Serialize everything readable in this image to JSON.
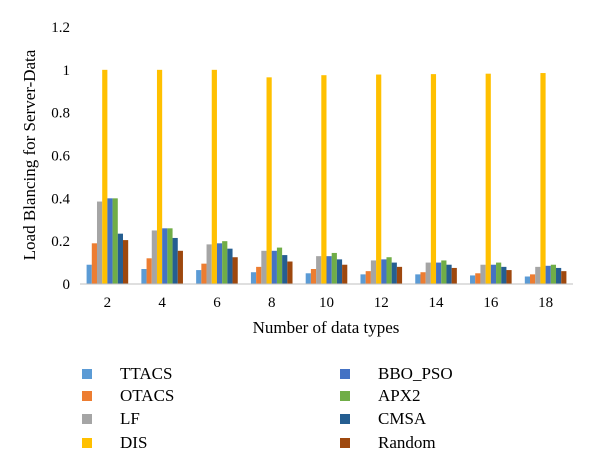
{
  "chart_data": {
    "type": "bar",
    "title": "",
    "xlabel": "Number of data types",
    "ylabel": "Load Blancing for Server-Data",
    "ylim": [
      0,
      1.2
    ],
    "yticks": [
      0,
      0.2,
      0.4,
      0.6,
      0.8,
      1,
      1.2
    ],
    "ytick_labels": [
      "0",
      "0.2",
      "0.4",
      "0.6",
      "0.8",
      "1",
      "1.2"
    ],
    "categories": [
      "2",
      "4",
      "6",
      "8",
      "10",
      "12",
      "14",
      "16",
      "18"
    ],
    "grid": false,
    "legend_position": "bottom",
    "series": [
      {
        "name": "TTACS",
        "color": "#5b9bd5",
        "values": [
          0.09,
          0.07,
          0.065,
          0.055,
          0.05,
          0.045,
          0.045,
          0.04,
          0.035
        ]
      },
      {
        "name": "OTACS",
        "color": "#ed7d31",
        "values": [
          0.19,
          0.12,
          0.095,
          0.08,
          0.07,
          0.06,
          0.055,
          0.05,
          0.045
        ]
      },
      {
        "name": "LF",
        "color": "#a5a5a5",
        "values": [
          0.385,
          0.25,
          0.185,
          0.155,
          0.13,
          0.11,
          0.1,
          0.09,
          0.08
        ]
      },
      {
        "name": "DIS",
        "color": "#ffc000",
        "values": [
          1.0,
          1.0,
          1.0,
          0.965,
          0.975,
          0.978,
          0.98,
          0.982,
          0.985
        ]
      },
      {
        "name": "BBO_PSO",
        "color": "#4472c4",
        "values": [
          0.4,
          0.26,
          0.19,
          0.155,
          0.13,
          0.115,
          0.1,
          0.09,
          0.085
        ]
      },
      {
        "name": "APX2",
        "color": "#70ad47",
        "values": [
          0.4,
          0.26,
          0.2,
          0.17,
          0.145,
          0.125,
          0.11,
          0.1,
          0.09
        ]
      },
      {
        "name": "CMSA",
        "color": "#255e91",
        "values": [
          0.235,
          0.215,
          0.165,
          0.135,
          0.115,
          0.1,
          0.09,
          0.08,
          0.075
        ]
      },
      {
        "name": "Random",
        "color": "#9e480e",
        "values": [
          0.205,
          0.155,
          0.125,
          0.105,
          0.09,
          0.08,
          0.075,
          0.065,
          0.06
        ]
      }
    ]
  }
}
